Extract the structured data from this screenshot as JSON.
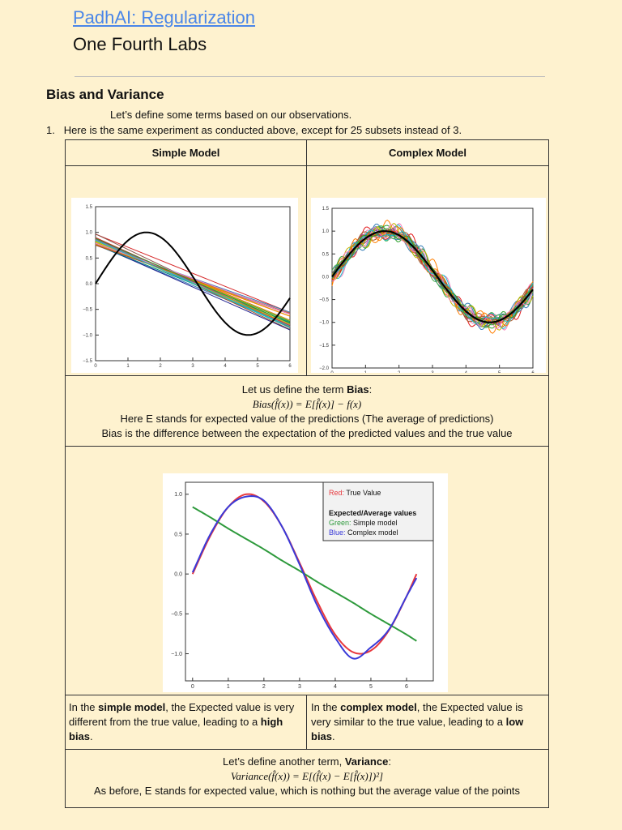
{
  "header": {
    "title": "PadhAI: Regularization",
    "subtitle": "One Fourth Labs"
  },
  "section": {
    "heading": "Bias and Variance",
    "intro": "Let’s define some terms based on our observations.",
    "item_number": "1.",
    "item_text": "Here is the same experiment as conducted above, except for 25 subsets instead of 3."
  },
  "table": {
    "col1": "Simple Model",
    "col2": "Complex Model",
    "bias": {
      "line1_pre": "Let us define the term ",
      "line1_bold": "Bias",
      "line1_post": ":",
      "formula": "Bias(f̂(x)) = E[f̂(x)] − f(x)",
      "line3": "Here E stands for expected value of the predictions (The average of predictions)",
      "line4": "Bias is the difference between the expectation of the predicted values and the true value"
    },
    "simple_note": {
      "a": "In the ",
      "b": "simple model",
      "c": ", the Expected value is very different from the true value, leading to a ",
      "d": "high bias",
      "e": "."
    },
    "complex_note": {
      "a": "In the ",
      "b": "complex model",
      "c": ", the Expected value is very similar to the true value, leading to a ",
      "d": "low bias",
      "e": "."
    },
    "variance": {
      "line1_pre": "Let’s define another term, ",
      "line1_bold": "Variance",
      "line1_post": ":",
      "formula": "Variance(f̂(x)) = E[(f̂(x) − E[f̂(x)])²]",
      "line3": "As before, E stands for expected value, which is nothing but the average value of the points"
    }
  },
  "chart_data": [
    {
      "type": "line",
      "xlim": [
        0,
        6
      ],
      "ylim": [
        -1.5,
        1.5
      ],
      "xticks": [
        "0",
        "1",
        "2",
        "3",
        "4",
        "5",
        "6"
      ],
      "yticks": [
        "−1.5",
        "−1.0",
        "−0.5",
        "0.0",
        "0.5",
        "1.0",
        "1.5"
      ],
      "series": [
        {
          "kind": "true function sin(x)",
          "color": "#000000"
        },
        {
          "kind": "25 linear fits",
          "intercept_range": [
            0.73,
            0.98
          ],
          "value_at_6_range": [
            -0.92,
            -0.55
          ]
        }
      ]
    },
    {
      "type": "line",
      "xlim": [
        0,
        6
      ],
      "ylim": [
        -2.0,
        1.5
      ],
      "xticks": [
        "0",
        "1",
        "2",
        "3",
        "4",
        "5",
        "6"
      ],
      "yticks": [
        "−2.0",
        "−1.5",
        "−1.0",
        "−0.5",
        "0.0",
        "0.5",
        "1.0",
        "1.5"
      ],
      "series": [
        {
          "kind": "true function sin(x)",
          "color": "#000000"
        },
        {
          "kind": "25 high-degree fits",
          "noise_amplitude": 0.35
        }
      ]
    },
    {
      "type": "line",
      "xlim": [
        -0.2,
        6.75
      ],
      "ylim": [
        -1.34,
        1.15
      ],
      "xticks": [
        "0",
        "1",
        "2",
        "3",
        "4",
        "5",
        "6"
      ],
      "yticks": [
        "−1.0",
        "−0.5",
        "0.0",
        "0.5",
        "1.0"
      ],
      "legend": {
        "red_label": "Red:",
        "red_text": "True Value",
        "heading": "Expected/Average values",
        "green_label": "Green:",
        "green_text": "Simple model",
        "blue_label": "Blue:",
        "blue_text": "Complex model",
        "placement": "top-right"
      },
      "x": [
        0,
        0.5,
        1,
        1.5,
        2,
        2.5,
        3,
        3.5,
        4,
        4.5,
        5,
        5.5,
        6,
        6.28
      ],
      "series": [
        {
          "color": "#e8383d",
          "values": [
            0,
            0.48,
            0.84,
            1.0,
            0.91,
            0.6,
            0.14,
            -0.35,
            -0.76,
            -0.98,
            -0.96,
            -0.71,
            -0.28,
            0
          ]
        },
        {
          "color": "#2e9a3c",
          "values": [
            0.84,
            0.71,
            0.57,
            0.44,
            0.31,
            0.17,
            0.04,
            -0.1,
            -0.23,
            -0.36,
            -0.5,
            -0.63,
            -0.76,
            -0.84
          ]
        },
        {
          "color": "#3a3ad8",
          "values": [
            0.02,
            0.5,
            0.84,
            0.97,
            0.92,
            0.6,
            0.12,
            -0.4,
            -0.8,
            -1.06,
            -0.92,
            -0.7,
            -0.28,
            -0.05
          ]
        }
      ]
    }
  ],
  "colors": {
    "background": "#fef2cf",
    "title": "#4a86e8"
  }
}
